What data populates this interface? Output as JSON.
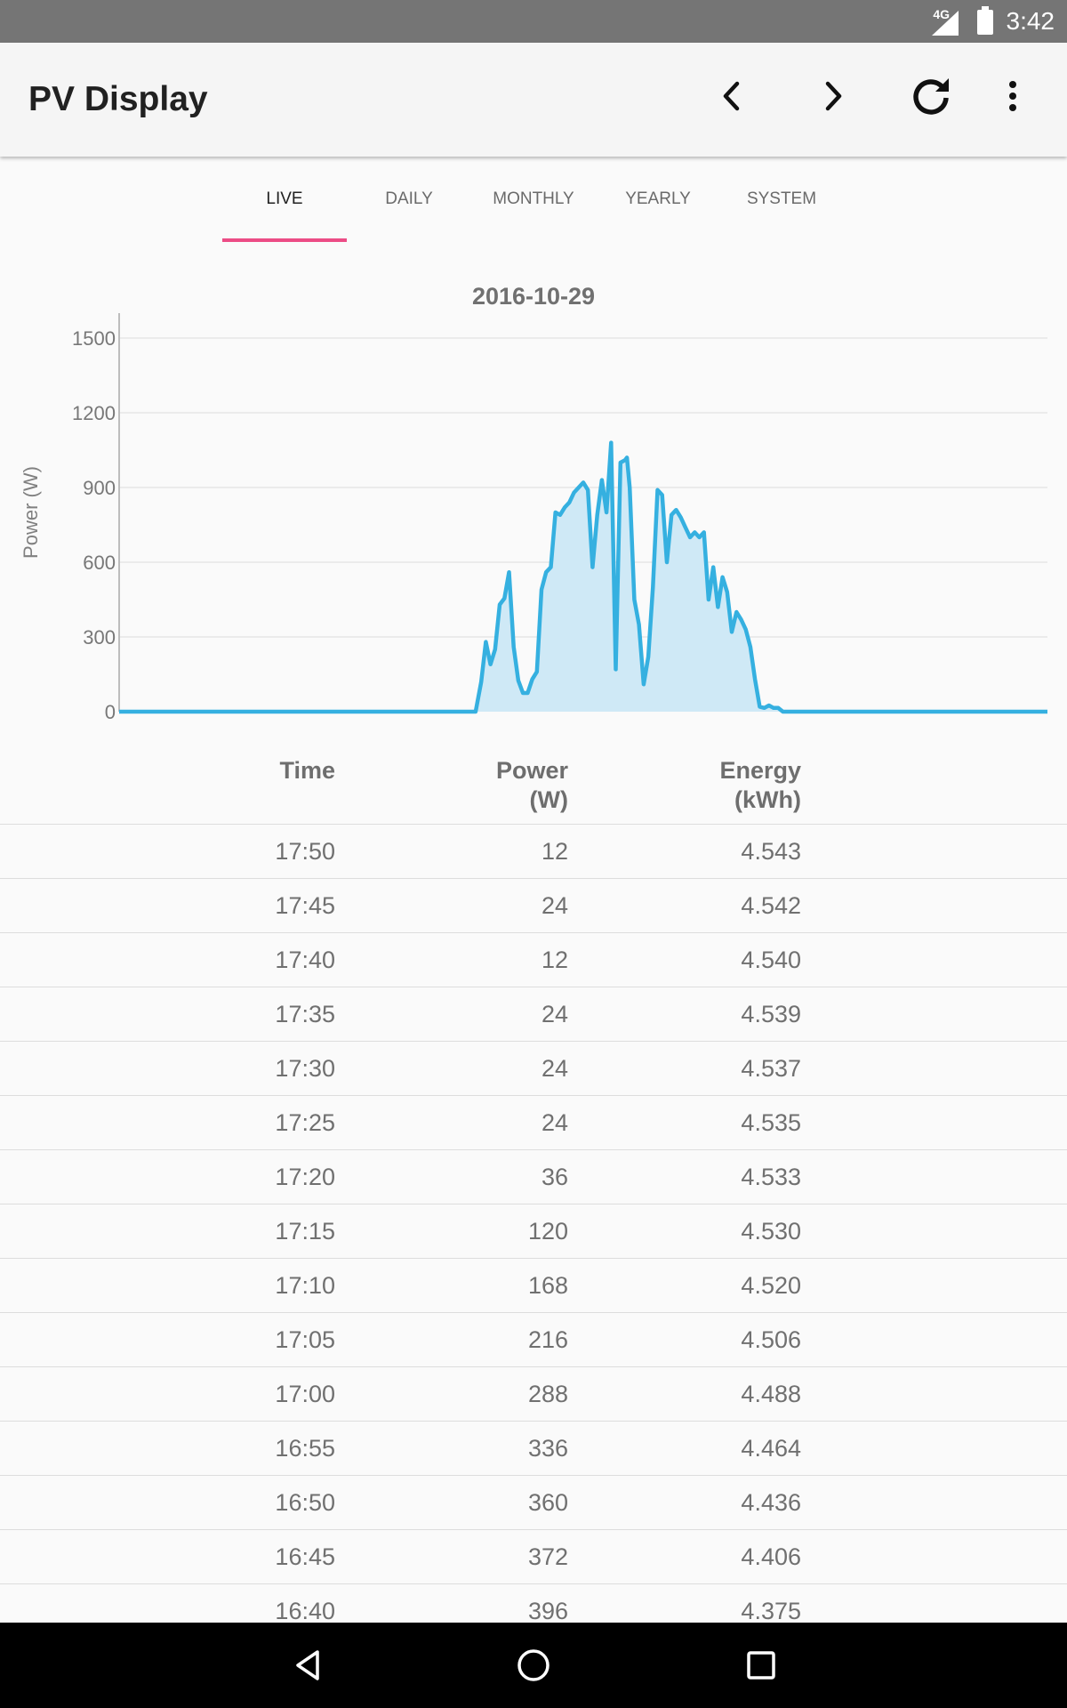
{
  "status_bar": {
    "network": "4G",
    "time": "3:42"
  },
  "app_bar": {
    "title": "PV Display",
    "actions": [
      "previous",
      "next",
      "refresh",
      "more-options"
    ]
  },
  "tabs": [
    {
      "label": "LIVE",
      "active": true
    },
    {
      "label": "DAILY",
      "active": false
    },
    {
      "label": "MONTHLY",
      "active": false
    },
    {
      "label": "YEARLY",
      "active": false
    },
    {
      "label": "SYSTEM",
      "active": false
    }
  ],
  "colors": {
    "accent": "#ec4c85",
    "series_line": "#35b0e0",
    "series_fill": "#cfe9f6"
  },
  "chart_data": {
    "type": "area",
    "title": "2016-10-29",
    "xlabel": "",
    "ylabel": "Power (W)",
    "ylim": [
      0,
      1600
    ],
    "yticks": [
      0,
      300,
      600,
      900,
      1200,
      1500
    ],
    "grid": true,
    "legend": "none",
    "x": [
      0,
      20,
      38.4,
      39,
      39.5,
      40,
      40.5,
      41,
      41.5,
      42,
      42.5,
      43,
      43.5,
      44,
      44.5,
      45,
      45.5,
      46,
      46.5,
      47,
      47.5,
      48,
      48.5,
      49,
      49.5,
      50,
      50.5,
      51,
      51.5,
      52,
      52.5,
      53,
      53.5,
      54,
      54.5,
      54.7,
      55,
      55.5,
      56,
      56.5,
      57,
      57.5,
      58,
      58.5,
      59,
      59.5,
      60,
      60.5,
      61,
      61.5,
      62,
      62.5,
      63,
      63.5,
      64,
      64.5,
      65,
      65.5,
      66,
      66.5,
      67,
      67.5,
      68,
      68.5,
      69,
      69.5,
      70,
      70.5,
      71,
      71.5,
      72,
      73,
      100
    ],
    "y": [
      0,
      0,
      0,
      120,
      280,
      190,
      250,
      430,
      455,
      560,
      260,
      125,
      75,
      75,
      130,
      160,
      490,
      560,
      580,
      800,
      790,
      820,
      840,
      880,
      900,
      920,
      890,
      580,
      790,
      930,
      800,
      1080,
      170,
      1000,
      1010,
      1020,
      900,
      450,
      350,
      110,
      220,
      500,
      890,
      870,
      600,
      790,
      810,
      780,
      740,
      700,
      720,
      700,
      720,
      450,
      580,
      420,
      540,
      480,
      320,
      400,
      370,
      330,
      260,
      130,
      20,
      15,
      25,
      15,
      15,
      0,
      0,
      0,
      0
    ]
  },
  "table": {
    "headers": {
      "time": "Time",
      "power": [
        "Power",
        "(W)"
      ],
      "energy": [
        "Energy",
        "(kWh)"
      ]
    },
    "rows": [
      [
        "17:50",
        "12",
        "4.543"
      ],
      [
        "17:45",
        "24",
        "4.542"
      ],
      [
        "17:40",
        "12",
        "4.540"
      ],
      [
        "17:35",
        "24",
        "4.539"
      ],
      [
        "17:30",
        "24",
        "4.537"
      ],
      [
        "17:25",
        "24",
        "4.535"
      ],
      [
        "17:20",
        "36",
        "4.533"
      ],
      [
        "17:15",
        "120",
        "4.530"
      ],
      [
        "17:10",
        "168",
        "4.520"
      ],
      [
        "17:05",
        "216",
        "4.506"
      ],
      [
        "17:00",
        "288",
        "4.488"
      ],
      [
        "16:55",
        "336",
        "4.464"
      ],
      [
        "16:50",
        "360",
        "4.436"
      ],
      [
        "16:45",
        "372",
        "4.406"
      ],
      [
        "16:40",
        "396",
        "4.375"
      ]
    ]
  },
  "nav_bar": [
    "back",
    "home",
    "recents"
  ]
}
